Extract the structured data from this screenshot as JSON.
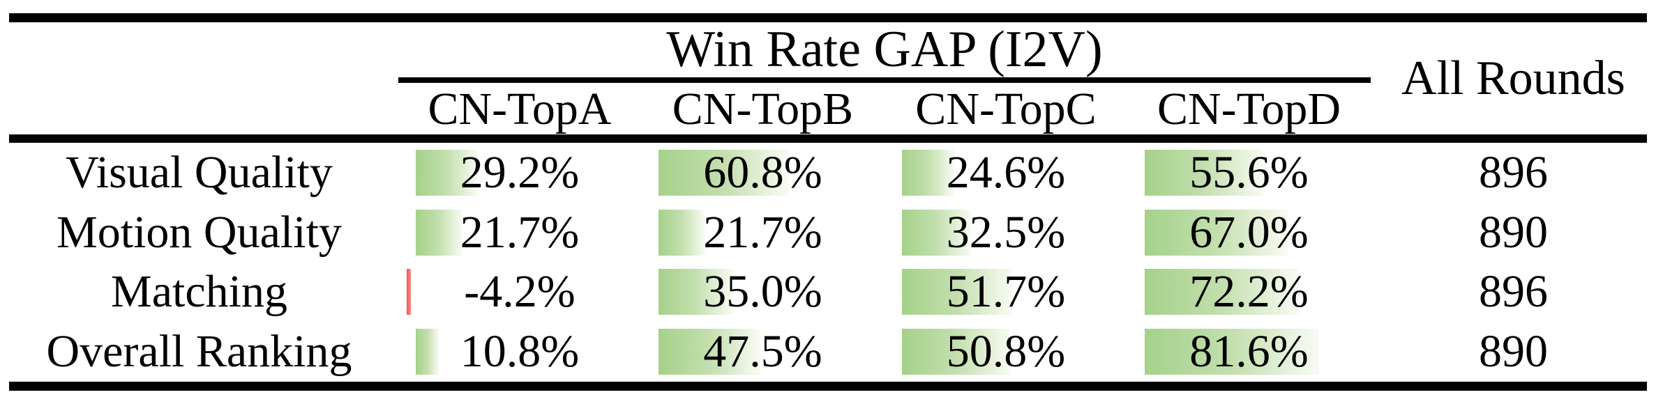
{
  "table": {
    "spanner_header": "Win Rate GAP (I2V)",
    "all_rounds_header": "All Rounds",
    "columns": [
      "CN-TopA",
      "CN-TopB",
      "CN-TopC",
      "CN-TopD"
    ],
    "rows": [
      {
        "label": "Visual Quality",
        "cells": [
          {
            "text": "29.2%",
            "pct": 29.2
          },
          {
            "text": "60.8%",
            "pct": 60.8
          },
          {
            "text": "24.6%",
            "pct": 24.6
          },
          {
            "text": "55.6%",
            "pct": 55.6
          }
        ],
        "all_rounds": "896"
      },
      {
        "label": "Motion Quality",
        "cells": [
          {
            "text": "21.7%",
            "pct": 21.7
          },
          {
            "text": "21.7%",
            "pct": 21.7
          },
          {
            "text": "32.5%",
            "pct": 32.5
          },
          {
            "text": "67.0%",
            "pct": 67.0
          }
        ],
        "all_rounds": "890"
      },
      {
        "label": "Matching",
        "cells": [
          {
            "text": "-4.2%",
            "pct": -4.2
          },
          {
            "text": "35.0%",
            "pct": 35.0
          },
          {
            "text": "51.7%",
            "pct": 51.7
          },
          {
            "text": "72.2%",
            "pct": 72.2
          }
        ],
        "all_rounds": "896"
      },
      {
        "label": "Overall Ranking",
        "cells": [
          {
            "text": "10.8%",
            "pct": 10.8
          },
          {
            "text": "47.5%",
            "pct": 47.5
          },
          {
            "text": "50.8%",
            "pct": 50.8
          },
          {
            "text": "81.6%",
            "pct": 81.6
          }
        ],
        "all_rounds": "890"
      }
    ],
    "colors": {
      "bar_positive": "#a5d18a",
      "bar_positive_fade": "#f8fbf4",
      "bar_negative": "#f55454",
      "rule": "#000000"
    }
  },
  "chart_data": {
    "type": "table",
    "title": "Win Rate GAP (I2V)",
    "columns": [
      "CN-TopA",
      "CN-TopB",
      "CN-TopC",
      "CN-TopD",
      "All Rounds"
    ],
    "rows": [
      {
        "label": "Visual Quality",
        "values": [
          29.2,
          60.8,
          24.6,
          55.6
        ],
        "all_rounds": 896
      },
      {
        "label": "Motion Quality",
        "values": [
          21.7,
          21.7,
          32.5,
          67.0
        ],
        "all_rounds": 890
      },
      {
        "label": "Matching",
        "values": [
          -4.2,
          35.0,
          51.7,
          72.2
        ],
        "all_rounds": 896
      },
      {
        "label": "Overall Ranking",
        "values": [
          10.8,
          47.5,
          50.8,
          81.6
        ],
        "all_rounds": 890
      }
    ],
    "unit": "%",
    "layout_hints": "in-cell gradient data bars, green positive / red negative, booktabs-style horizontal rules only"
  }
}
